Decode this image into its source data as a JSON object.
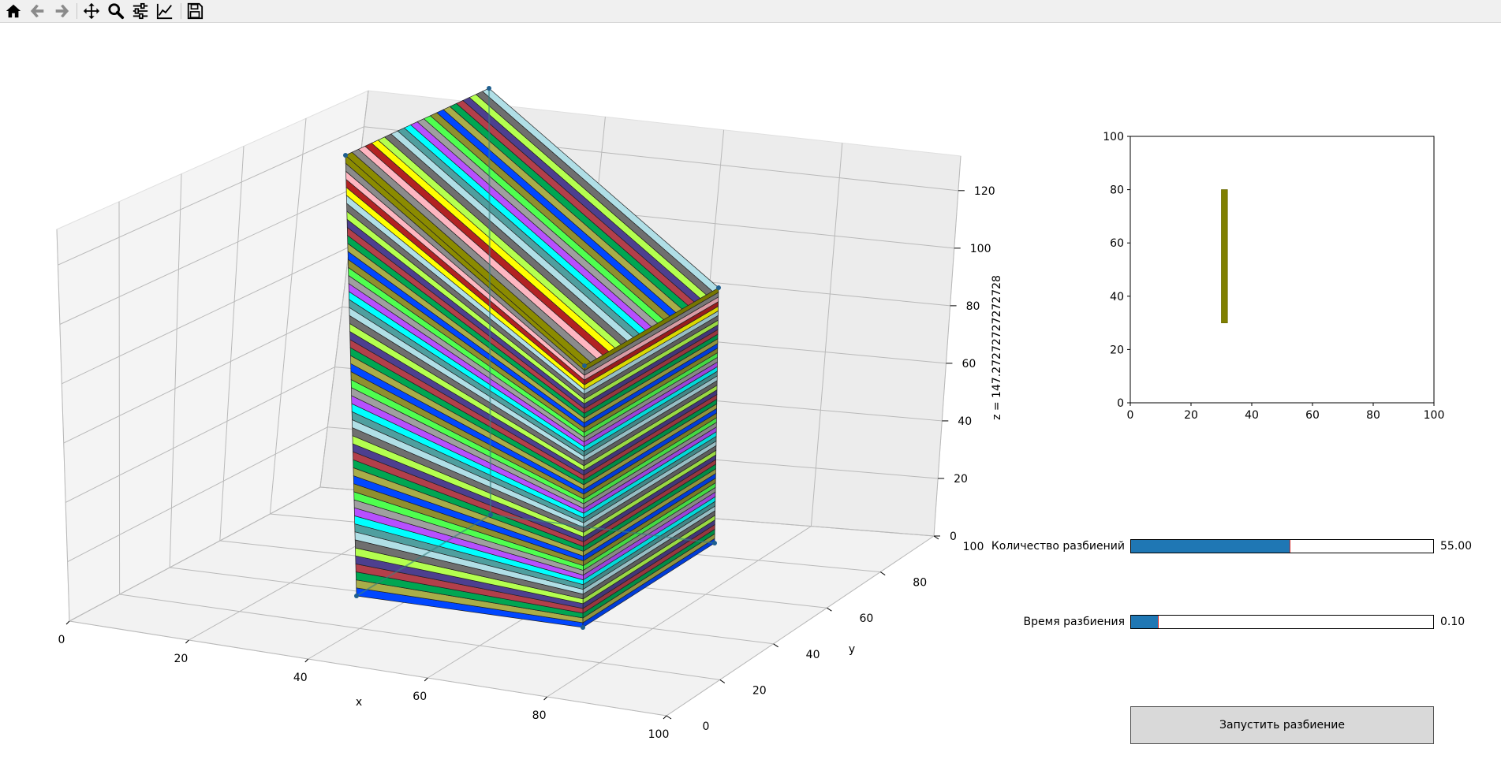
{
  "toolbar": {
    "buttons": [
      {
        "name": "home-icon"
      },
      {
        "name": "back-icon"
      },
      {
        "name": "forward-icon"
      },
      {
        "name": "pan-icon"
      },
      {
        "name": "zoom-icon"
      },
      {
        "name": "configure-subplots-icon"
      },
      {
        "name": "edit-axis-icon"
      },
      {
        "name": "save-icon"
      }
    ]
  },
  "plot3d": {
    "xlabel": "x",
    "ylabel": "y",
    "zlabel": "z = 147.27272727272728",
    "xticks": [
      "0",
      "20",
      "40",
      "60",
      "80",
      "100"
    ],
    "yticks": [
      "0",
      "20",
      "40",
      "60",
      "80",
      "100"
    ],
    "zticks": [
      "0",
      "20",
      "40",
      "60",
      "80",
      "100",
      "120"
    ],
    "box": {
      "x": [
        30,
        100
      ],
      "y": [
        30,
        80
      ],
      "z": [
        0,
        147.27
      ]
    },
    "partitions": 55,
    "stripe_colors": [
      "#0047ff",
      "#a9ad49",
      "#00a652",
      "#b33f4a",
      "#4d3f8f",
      "#b4ff4f",
      "#6f6f6f",
      "#b0dfe6",
      "#4f9f9f",
      "#00ffff",
      "#b74fff",
      "#9f9f9f",
      "#4fff4f",
      "#8f8f2f"
    ],
    "top_stripe_colors": [
      "#8b8b00",
      "#8b8b8b",
      "#ffb6c1",
      "#b22222",
      "#ffff00"
    ],
    "colors": {
      "pane": "#f2f2f2",
      "grid": "#b0b0b0"
    }
  },
  "chart_data": {
    "type": "bar",
    "title": "",
    "xlabel": "",
    "ylabel": "",
    "xlim": [
      0,
      100
    ],
    "ylim": [
      0,
      100
    ],
    "xticks": [
      "0",
      "20",
      "40",
      "60",
      "80",
      "100"
    ],
    "yticks": [
      "0",
      "20",
      "40",
      "60",
      "80",
      "100"
    ],
    "rects": [
      {
        "x": [
          30,
          32
        ],
        "y": [
          30,
          80
        ],
        "color": "#808000"
      }
    ]
  },
  "sliders": [
    {
      "label": "Количество разбиений",
      "value": "55.00",
      "fraction": 0.525,
      "color": "#1f77b4"
    },
    {
      "label": "Время разбиения",
      "value": "0.10",
      "fraction": 0.09,
      "color": "#1f77b4"
    }
  ],
  "run_button": {
    "label": "Запустить разбиение"
  }
}
